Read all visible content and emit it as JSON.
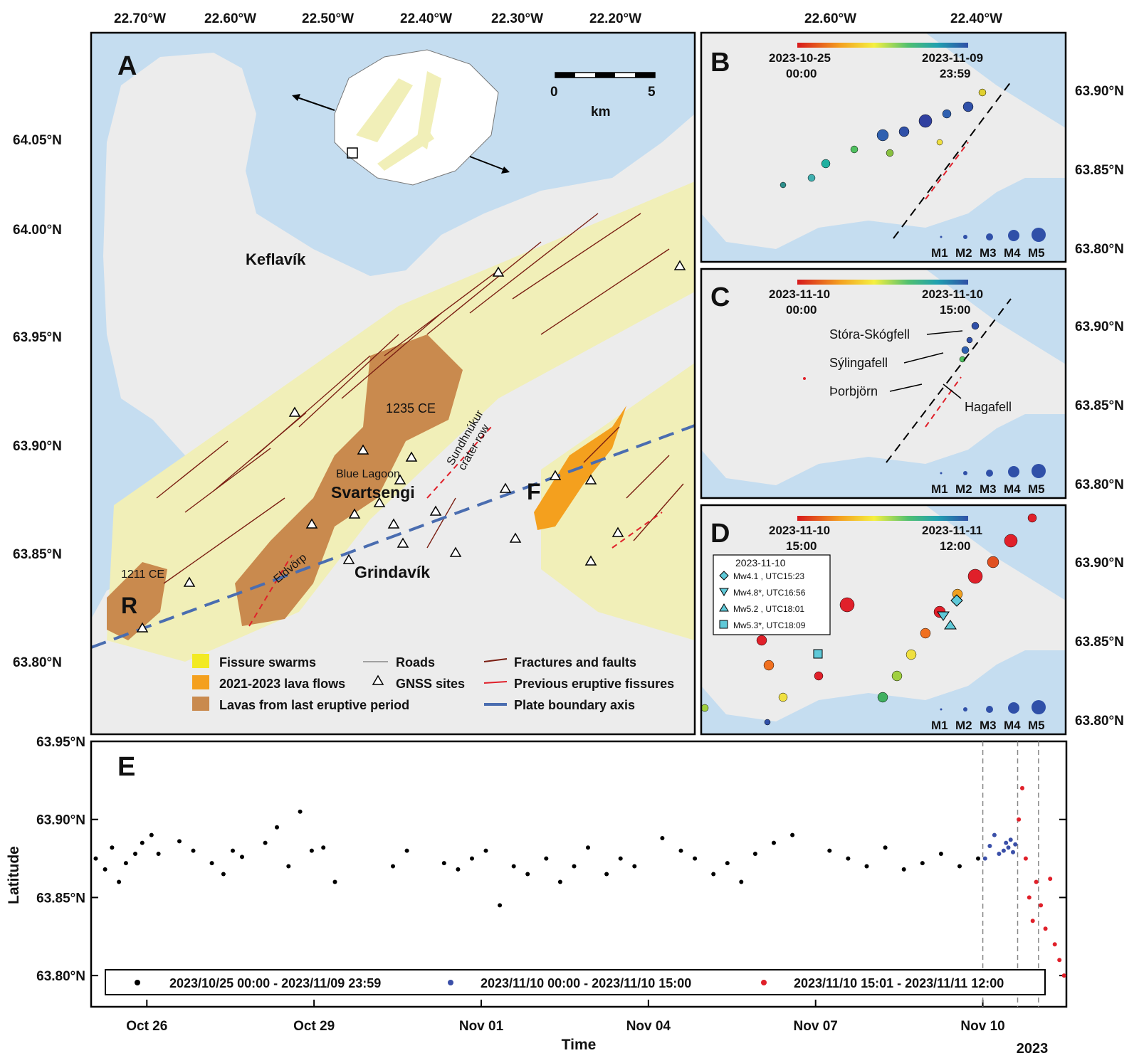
{
  "panelA": {
    "letter": "A",
    "lon_ticks": [
      "22.70°W",
      "22.60°W",
      "22.50°W",
      "22.40°W",
      "22.30°W",
      "22.20°W"
    ],
    "lat_ticks": [
      "64.05°N",
      "64.00°N",
      "63.95°N",
      "63.90°N",
      "63.85°N",
      "63.80°N"
    ],
    "scale_start": "0",
    "scale_end": "5",
    "scale_unit": "km",
    "places": {
      "keflavik": "Keflavík",
      "svartsengi": "Svartsengi",
      "grindavik": "Grindavík",
      "blue_lagoon": "Blue Lagoon",
      "eldvorp": "Eldvörp",
      "lava_1235": "1235 CE",
      "lava_1211": "1211 CE",
      "sundhnukur_1": "Sundhnúkur",
      "sundhnukur_2": "crater row",
      "r": "R",
      "f": "F"
    },
    "legend": [
      "Fissure swarms",
      "Roads",
      "Fractures and faults",
      "2021-2023 lava flows",
      "GNSS sites",
      "Previous eruptive fissures",
      "Lavas from last eruptive period",
      "Plate boundary axis"
    ],
    "colors": {
      "sea": "#c5ddf0",
      "swarm": "#f1efb8",
      "lava_new": "#f4a01e",
      "lava_old": "#c98a4e",
      "fault": "#7a1e12",
      "fissure": "#e0202a",
      "plate": "#4a6db0"
    }
  },
  "panelB": {
    "letter": "B",
    "lon_ticks": [
      "22.60°W",
      "22.40°W"
    ],
    "lat_ticks": [
      "63.90°N",
      "63.85°N",
      "63.80°N"
    ],
    "cbar_start": "2023-10-25",
    "cbar_start_time": "00:00",
    "cbar_end": "2023-11-09",
    "cbar_end_time": "23:59"
  },
  "panelC": {
    "letter": "C",
    "lat_ticks": [
      "63.90°N",
      "63.85°N",
      "63.80°N"
    ],
    "cbar_start": "2023-11-10",
    "cbar_start_time": "00:00",
    "cbar_end": "2023-11-10",
    "cbar_end_time": "15:00",
    "labels": [
      "Stóra-Skógfell",
      "Sýlingafell",
      "Þorbjörn",
      "Hagafell"
    ]
  },
  "panelD": {
    "letter": "D",
    "lat_ticks": [
      "63.90°N",
      "63.85°N",
      "63.80°N"
    ],
    "cbar_start": "2023-11-10",
    "cbar_start_time": "15:00",
    "cbar_end": "2023-11-11",
    "cbar_end_time": "12:00",
    "box_title": "2023-11-10",
    "events": [
      "Mw4.1 , UTC15:23",
      "Mw4.8*, UTC16:56",
      "Mw5.2 , UTC18:01",
      "Mw5.3*, UTC18:09"
    ]
  },
  "magnitudes": [
    "M1",
    "M2",
    "M3",
    "M4",
    "M5"
  ],
  "chart_data": {
    "type": "scatter",
    "panel": "E",
    "xlabel": "Time",
    "ylabel": "Latitude",
    "x_ticks": [
      "Oct 26",
      "Oct 29",
      "Nov 01",
      "Nov 04",
      "Nov 07",
      "Nov 10"
    ],
    "year_label": "2023",
    "y_ticks": [
      "63.95°N",
      "63.90°N",
      "63.85°N",
      "63.80°N"
    ],
    "xlim": [
      "2023-10-25",
      "2023-11-11T12:00"
    ],
    "ylim": [
      63.78,
      63.95
    ],
    "series": [
      {
        "name": "2023/10/25 00:00 - 2023/11/09 23:59",
        "color": "#000000",
        "x": [
          "10-25 02:00",
          "10-25 06:00",
          "10-25 09:00",
          "10-25 12:00",
          "10-25 15:00",
          "10-25 19:00",
          "10-25 22:00",
          "10-26 02:00",
          "10-26 05:00",
          "10-26 14:00",
          "10-26 20:00",
          "10-27 04:00",
          "10-27 09:00",
          "10-27 13:00",
          "10-27 17:00",
          "10-28 03:00",
          "10-28 08:00",
          "10-28 13:00",
          "10-28 18:00",
          "10-28 23:00",
          "10-29 04:00",
          "10-29 09:00",
          "10-30 10:00",
          "10-30 16:00",
          "10-31 08:00",
          "10-31 14:00",
          "10-31 20:00",
          "11-01 02:00",
          "11-01 08:00",
          "11-01 14:00",
          "11-01 20:00",
          "11-02 04:00",
          "11-02 10:00",
          "11-02 16:00",
          "11-02 22:00",
          "11-03 06:00",
          "11-03 12:00",
          "11-03 18:00",
          "11-04 06:00",
          "11-04 14:00",
          "11-04 20:00",
          "11-05 04:00",
          "11-05 10:00",
          "11-05 16:00",
          "11-05 22:00",
          "11-06 06:00",
          "11-06 14:00",
          "11-07 06:00",
          "11-07 14:00",
          "11-07 22:00",
          "11-08 06:00",
          "11-08 14:00",
          "11-08 22:00",
          "11-09 06:00",
          "11-09 14:00",
          "11-09 22:00"
        ],
        "y": [
          63.875,
          63.868,
          63.882,
          63.86,
          63.872,
          63.878,
          63.885,
          63.89,
          63.878,
          63.886,
          63.88,
          63.872,
          63.865,
          63.88,
          63.876,
          63.885,
          63.895,
          63.87,
          63.905,
          63.88,
          63.882,
          63.86,
          63.87,
          63.88,
          63.872,
          63.868,
          63.875,
          63.88,
          63.845,
          63.87,
          63.865,
          63.875,
          63.86,
          63.87,
          63.882,
          63.865,
          63.875,
          63.87,
          63.888,
          63.88,
          63.875,
          63.865,
          63.872,
          63.86,
          63.878,
          63.885,
          63.89,
          63.88,
          63.875,
          63.87,
          63.882,
          63.868,
          63.872,
          63.878,
          63.87,
          63.875
        ]
      },
      {
        "name": "2023/11/10 00:00 - 2023/11/10 15:00",
        "color": "#3a4fa8",
        "x": [
          "11-10 01:00",
          "11-10 03:00",
          "11-10 05:00",
          "11-10 07:00",
          "11-10 09:00",
          "11-10 10:00",
          "11-10 11:00",
          "11-10 12:00",
          "11-10 13:00",
          "11-10 14:00"
        ],
        "y": [
          63.875,
          63.883,
          63.89,
          63.878,
          63.88,
          63.885,
          63.882,
          63.887,
          63.879,
          63.884
        ]
      },
      {
        "name": "2023/11/10 15:01 - 2023/11/11 12:00",
        "color": "#e0202a",
        "x": [
          "11-10 15:30",
          "11-10 17:00",
          "11-10 18:30",
          "11-10 20:00",
          "11-10 21:30",
          "11-10 23:00",
          "11-11 01:00",
          "11-11 03:00",
          "11-11 05:00",
          "11-11 07:00",
          "11-11 09:00",
          "11-11 11:00"
        ],
        "y": [
          63.9,
          63.92,
          63.875,
          63.85,
          63.835,
          63.86,
          63.845,
          63.83,
          63.862,
          63.82,
          63.81,
          63.8
        ]
      }
    ]
  }
}
